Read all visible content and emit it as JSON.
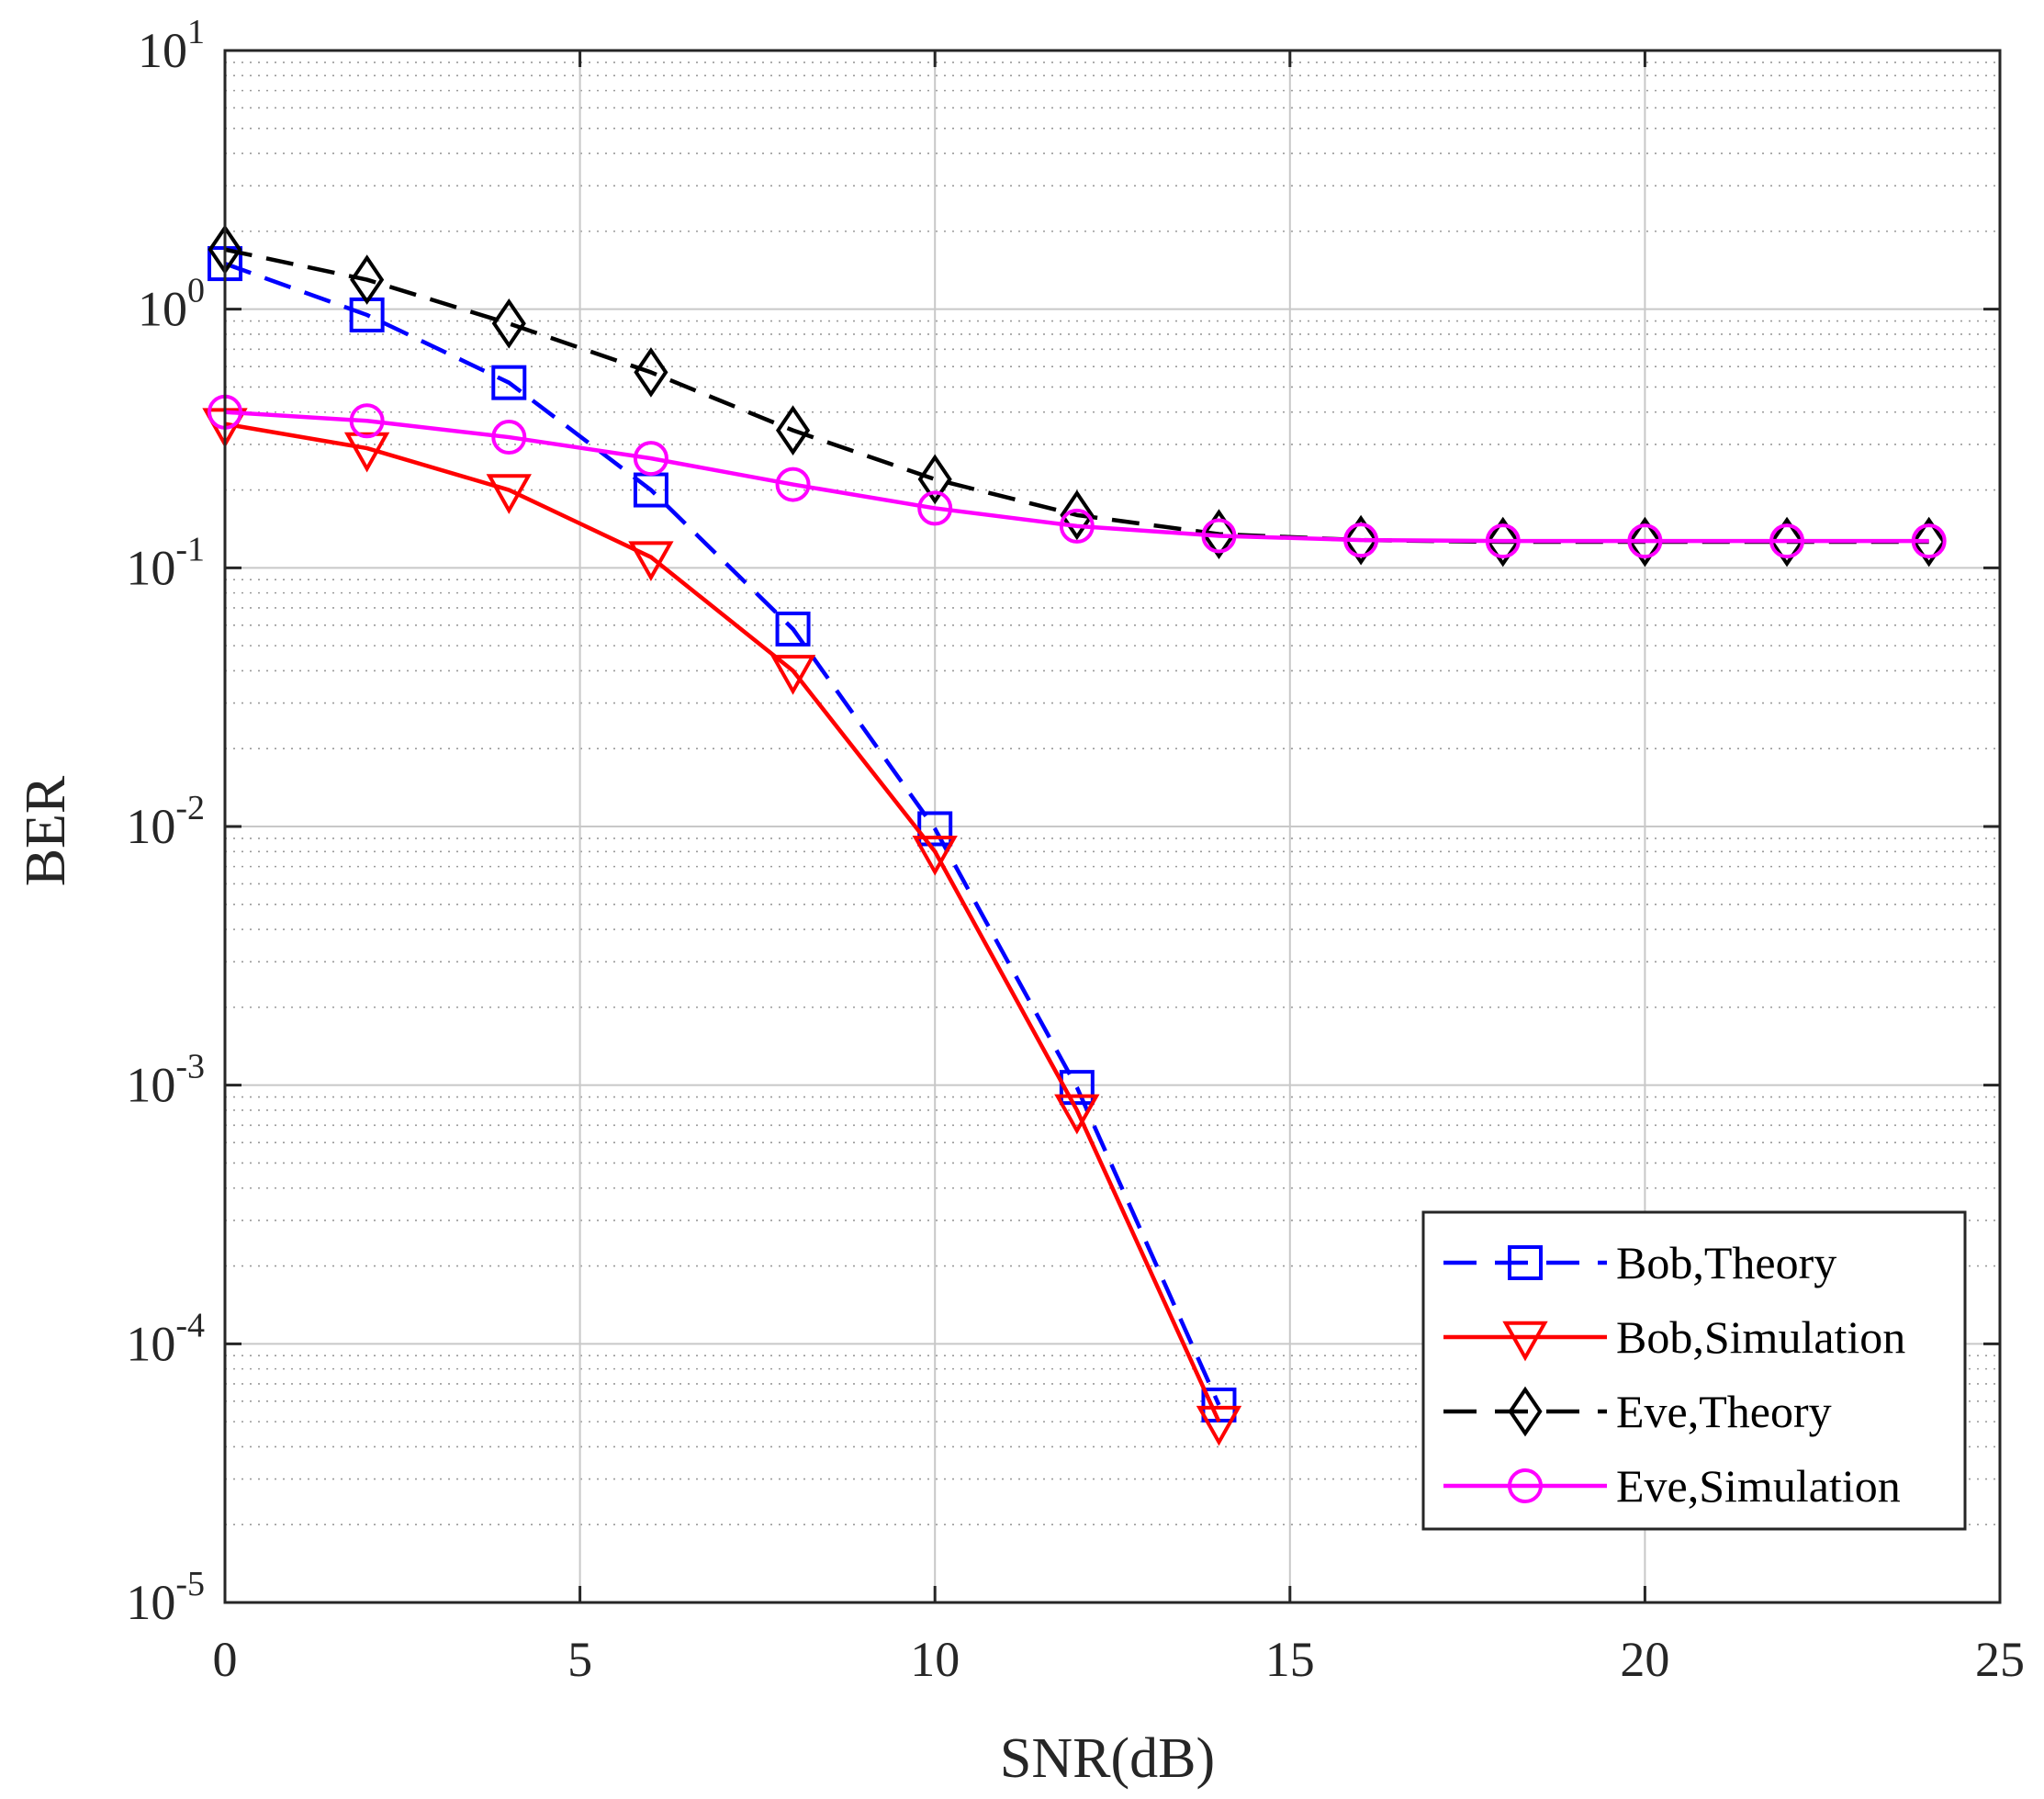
{
  "chart_data": {
    "type": "line",
    "title": "",
    "xlabel": "SNR(dB)",
    "ylabel": "BER",
    "xlim": [
      0,
      25
    ],
    "ylim": [
      1e-05,
      10
    ],
    "yscale": "log",
    "grid": true,
    "minor_grid": true,
    "legend_position": "bottom-right",
    "x_ticks": [
      {
        "value": 0,
        "label": "0"
      },
      {
        "value": 5,
        "label": "5"
      },
      {
        "value": 10,
        "label": "10"
      },
      {
        "value": 15,
        "label": "15"
      },
      {
        "value": 20,
        "label": "20"
      },
      {
        "value": 25,
        "label": "25"
      }
    ],
    "y_ticks": [
      {
        "value": 10,
        "base": "10",
        "exp": "1"
      },
      {
        "value": 1,
        "base": "10",
        "exp": "0"
      },
      {
        "value": 0.1,
        "base": "10",
        "exp": "-1"
      },
      {
        "value": 0.01,
        "base": "10",
        "exp": "-2"
      },
      {
        "value": 0.001,
        "base": "10",
        "exp": "-3"
      },
      {
        "value": 0.0001,
        "base": "10",
        "exp": "-4"
      },
      {
        "value": 1e-05,
        "base": "10",
        "exp": "-5"
      }
    ],
    "series": [
      {
        "name": "Bob,Theory",
        "color": "#0000ff",
        "dash": "dashed",
        "marker": "square",
        "x": [
          0,
          2,
          4,
          6,
          8,
          10,
          12,
          14
        ],
        "y": [
          1.5,
          0.95,
          0.52,
          0.2,
          0.058,
          0.0098,
          0.00098,
          5.8e-05
        ]
      },
      {
        "name": "Bob,Simulation",
        "color": "#ff0000",
        "dash": "solid",
        "marker": "triangle-down",
        "x": [
          0,
          2,
          4,
          6,
          8,
          10,
          12,
          14
        ],
        "y": [
          0.36,
          0.29,
          0.2,
          0.11,
          0.04,
          0.008,
          0.0008,
          5e-05
        ]
      },
      {
        "name": "Eve,Theory",
        "color": "#000000",
        "dash": "dashed",
        "marker": "diamond",
        "x": [
          0,
          2,
          4,
          6,
          8,
          10,
          12,
          14,
          16,
          18,
          20,
          22,
          24
        ],
        "y": [
          1.7,
          1.3,
          0.88,
          0.57,
          0.34,
          0.22,
          0.16,
          0.135,
          0.128,
          0.126,
          0.126,
          0.126,
          0.126
        ]
      },
      {
        "name": "Eve,Simulation",
        "color": "#ff00ff",
        "dash": "solid",
        "marker": "circle",
        "x": [
          0,
          2,
          4,
          6,
          8,
          10,
          12,
          14,
          16,
          18,
          20,
          22,
          24
        ],
        "y": [
          0.4,
          0.37,
          0.32,
          0.265,
          0.21,
          0.17,
          0.145,
          0.133,
          0.128,
          0.127,
          0.127,
          0.127,
          0.127
        ]
      }
    ]
  }
}
